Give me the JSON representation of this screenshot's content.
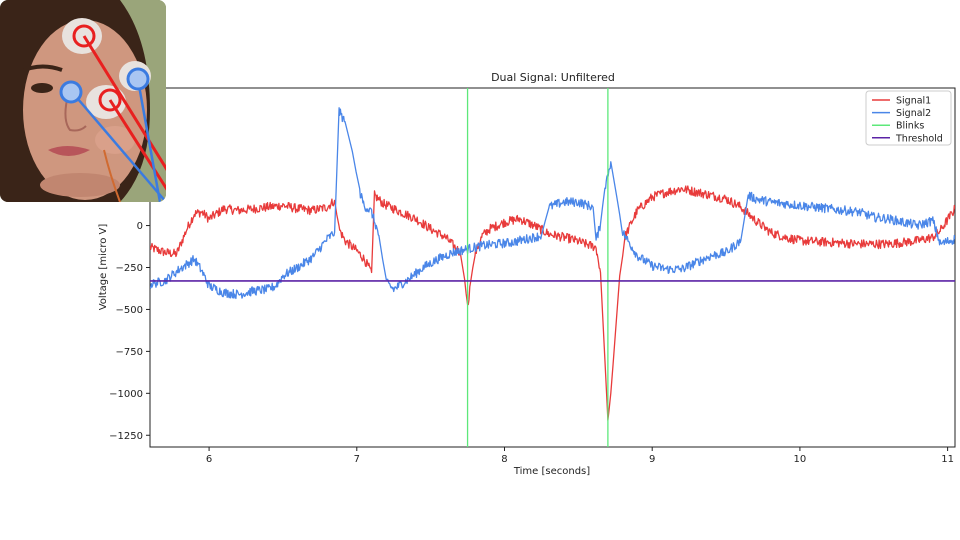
{
  "chart_data": {
    "type": "line",
    "title": "Dual Signal: Unfiltered",
    "xlabel": "Time [seconds]",
    "ylabel": "Voltage [micro V]",
    "xlim": [
      5.6,
      11.05
    ],
    "ylim": [
      -1320,
      820
    ],
    "xticks": [
      6,
      7,
      8,
      9,
      10,
      11
    ],
    "yticks": [
      0,
      -250,
      -500,
      -750,
      -1000,
      -1250
    ],
    "xtick_labels": [
      "6",
      "7",
      "8",
      "9",
      "10",
      "11"
    ],
    "ytick_labels": [
      "0",
      "−250",
      "−500",
      "−750",
      "−1000",
      "−1250"
    ],
    "legend_position": "top-right",
    "series": [
      {
        "name": "Signal1",
        "color": "#e83b3b",
        "points": [
          [
            5.6,
            -130
          ],
          [
            5.7,
            -160
          ],
          [
            5.78,
            -170
          ],
          [
            5.85,
            -20
          ],
          [
            5.9,
            70
          ],
          [
            5.95,
            80
          ],
          [
            6.0,
            40
          ],
          [
            6.05,
            70
          ],
          [
            6.1,
            100
          ],
          [
            6.2,
            90
          ],
          [
            6.3,
            100
          ],
          [
            6.4,
            110
          ],
          [
            6.5,
            120
          ],
          [
            6.6,
            100
          ],
          [
            6.7,
            90
          ],
          [
            6.8,
            110
          ],
          [
            6.85,
            150
          ],
          [
            6.88,
            -20
          ],
          [
            6.92,
            -90
          ],
          [
            7.0,
            -150
          ],
          [
            7.05,
            -200
          ],
          [
            7.1,
            -280
          ],
          [
            7.12,
            180
          ],
          [
            7.18,
            130
          ],
          [
            7.3,
            80
          ],
          [
            7.4,
            40
          ],
          [
            7.5,
            -20
          ],
          [
            7.6,
            -70
          ],
          [
            7.7,
            -160
          ],
          [
            7.73,
            -320
          ],
          [
            7.75,
            -490
          ],
          [
            7.77,
            -340
          ],
          [
            7.8,
            -170
          ],
          [
            7.85,
            -60
          ],
          [
            7.9,
            -20
          ],
          [
            8.0,
            20
          ],
          [
            8.1,
            40
          ],
          [
            8.2,
            0
          ],
          [
            8.3,
            -50
          ],
          [
            8.45,
            -80
          ],
          [
            8.55,
            -110
          ],
          [
            8.62,
            -130
          ],
          [
            8.65,
            -280
          ],
          [
            8.68,
            -800
          ],
          [
            8.7,
            -1160
          ],
          [
            8.72,
            -1000
          ],
          [
            8.75,
            -650
          ],
          [
            8.78,
            -300
          ],
          [
            8.82,
            -60
          ],
          [
            8.86,
            20
          ],
          [
            8.9,
            90
          ],
          [
            9.0,
            170
          ],
          [
            9.1,
            200
          ],
          [
            9.2,
            220
          ],
          [
            9.3,
            200
          ],
          [
            9.4,
            180
          ],
          [
            9.5,
            160
          ],
          [
            9.6,
            110
          ],
          [
            9.7,
            30
          ],
          [
            9.8,
            -40
          ],
          [
            9.9,
            -70
          ],
          [
            10.0,
            -90
          ],
          [
            10.2,
            -100
          ],
          [
            10.4,
            -110
          ],
          [
            10.6,
            -110
          ],
          [
            10.8,
            -90
          ],
          [
            10.9,
            -70
          ],
          [
            10.95,
            -30
          ],
          [
            11.05,
            100
          ]
        ]
      },
      {
        "name": "Signal2",
        "color": "#4a86e8",
        "points": [
          [
            5.6,
            -350
          ],
          [
            5.7,
            -330
          ],
          [
            5.8,
            -260
          ],
          [
            5.9,
            -200
          ],
          [
            5.95,
            -270
          ],
          [
            6.0,
            -360
          ],
          [
            6.1,
            -400
          ],
          [
            6.2,
            -410
          ],
          [
            6.3,
            -390
          ],
          [
            6.4,
            -380
          ],
          [
            6.45,
            -360
          ],
          [
            6.5,
            -300
          ],
          [
            6.6,
            -250
          ],
          [
            6.7,
            -190
          ],
          [
            6.8,
            -80
          ],
          [
            6.85,
            -40
          ],
          [
            6.88,
            680
          ],
          [
            6.92,
            620
          ],
          [
            6.97,
            440
          ],
          [
            7.02,
            200
          ],
          [
            7.05,
            120
          ],
          [
            7.1,
            80
          ],
          [
            7.15,
            -60
          ],
          [
            7.2,
            -340
          ],
          [
            7.25,
            -380
          ],
          [
            7.35,
            -320
          ],
          [
            7.45,
            -250
          ],
          [
            7.55,
            -200
          ],
          [
            7.65,
            -160
          ],
          [
            7.75,
            -140
          ],
          [
            7.85,
            -120
          ],
          [
            7.95,
            -110
          ],
          [
            8.05,
            -100
          ],
          [
            8.15,
            -80
          ],
          [
            8.25,
            -60
          ],
          [
            8.3,
            110
          ],
          [
            8.4,
            140
          ],
          [
            8.5,
            140
          ],
          [
            8.6,
            110
          ],
          [
            8.62,
            -90
          ],
          [
            8.65,
            10
          ],
          [
            8.68,
            230
          ],
          [
            8.72,
            380
          ],
          [
            8.76,
            170
          ],
          [
            8.8,
            -40
          ],
          [
            8.9,
            -180
          ],
          [
            9.0,
            -240
          ],
          [
            9.1,
            -260
          ],
          [
            9.2,
            -260
          ],
          [
            9.3,
            -220
          ],
          [
            9.4,
            -180
          ],
          [
            9.5,
            -160
          ],
          [
            9.6,
            -90
          ],
          [
            9.65,
            180
          ],
          [
            9.7,
            160
          ],
          [
            9.8,
            140
          ],
          [
            9.9,
            130
          ],
          [
            10.0,
            120
          ],
          [
            10.2,
            100
          ],
          [
            10.4,
            80
          ],
          [
            10.5,
            50
          ],
          [
            10.6,
            40
          ],
          [
            10.7,
            20
          ],
          [
            10.8,
            0
          ],
          [
            10.9,
            30
          ],
          [
            10.95,
            -110
          ],
          [
            11.05,
            -80
          ]
        ]
      },
      {
        "name": "Blinks",
        "color": "#5de87a",
        "vlines": [
          7.75,
          8.7
        ]
      },
      {
        "name": "Threshold",
        "color": "#5b23a6",
        "hline": -330
      }
    ]
  },
  "photo": {
    "skin": "#c98f7a",
    "hair": "#3a2418",
    "bg": "#7a8a5a",
    "electrode_red": "#e82020",
    "electrode_blue": "#3b7be0"
  }
}
